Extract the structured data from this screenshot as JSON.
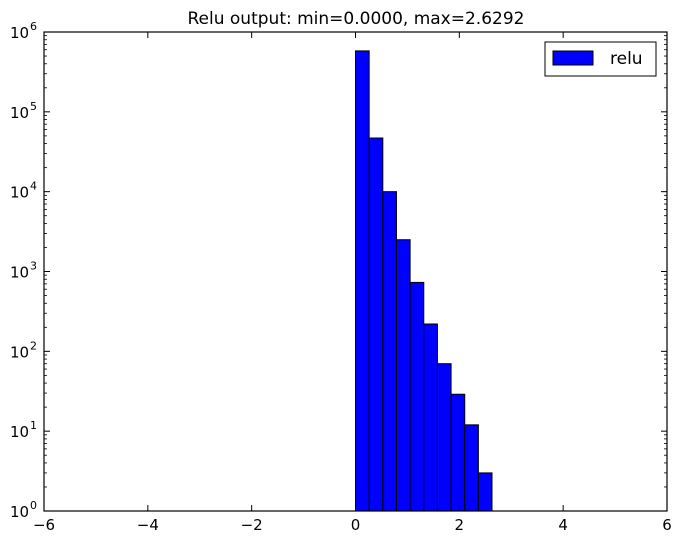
{
  "chart_data": {
    "type": "bar",
    "title": "Relu output: min=0.0000, max=2.6292",
    "xlabel": "",
    "ylabel": "",
    "xlim": [
      -6,
      6
    ],
    "ylim": [
      1,
      1000000
    ],
    "yscale": "log",
    "x_ticks": [
      -6,
      -4,
      -2,
      0,
      2,
      4,
      6
    ],
    "x_tick_labels": [
      "−6",
      "−4",
      "−2",
      "0",
      "2",
      "4",
      "6"
    ],
    "y_ticks": [
      1,
      10,
      100,
      1000,
      10000,
      100000,
      1000000
    ],
    "y_tick_labels": [
      {
        "base": "10",
        "exp": "0"
      },
      {
        "base": "10",
        "exp": "1"
      },
      {
        "base": "10",
        "exp": "2"
      },
      {
        "base": "10",
        "exp": "3"
      },
      {
        "base": "10",
        "exp": "4"
      },
      {
        "base": "10",
        "exp": "5"
      },
      {
        "base": "10",
        "exp": "6"
      }
    ],
    "grid": false,
    "legend": {
      "position": "top-right",
      "entries": [
        "relu"
      ]
    },
    "series": [
      {
        "name": "relu",
        "color": "#0000ff",
        "bin_edges": [
          0.0,
          0.263,
          0.526,
          0.789,
          1.052,
          1.315,
          1.578,
          1.841,
          2.104,
          2.367,
          2.629
        ],
        "counts": [
          580000,
          47000,
          10000,
          2500,
          730,
          220,
          70,
          29,
          12,
          3
        ]
      }
    ]
  }
}
